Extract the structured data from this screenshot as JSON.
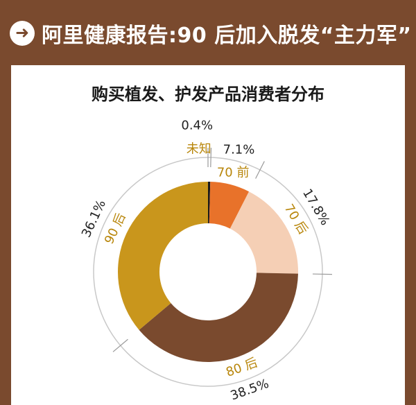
{
  "header": {
    "icon": "arrow-right-circle-icon",
    "title": "阿里健康报告:90 后加入脱发“主力军”"
  },
  "chart_data": {
    "type": "pie",
    "variant": "donut",
    "title": "购买植发、护发产品消费者分布",
    "slices": [
      {
        "name": "未知",
        "value": 0.4,
        "label": "0.4%",
        "color": "#1a1a1a"
      },
      {
        "name": "70 前",
        "value": 7.1,
        "label": "7.1%",
        "color": "#e8722a"
      },
      {
        "name": "70 后",
        "value": 17.8,
        "label": "17.8%",
        "color": "#f5cfb5"
      },
      {
        "name": "80 后",
        "value": 38.5,
        "label": "38.5%",
        "color": "#7a4a2e"
      },
      {
        "name": "90 后",
        "value": 36.1,
        "label": "36.1%",
        "color": "#c9961c"
      }
    ],
    "name_color": "#b8860b"
  }
}
